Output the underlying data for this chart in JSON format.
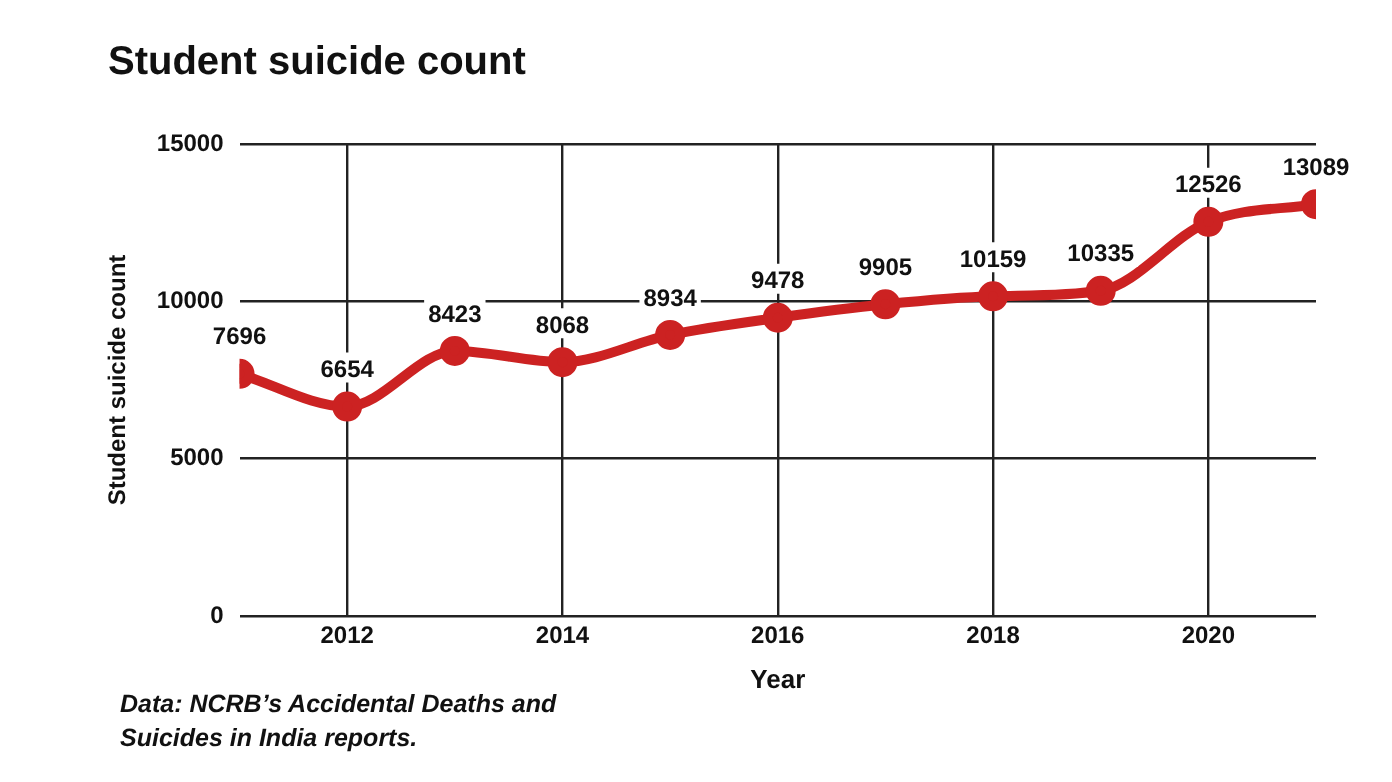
{
  "chart_data": {
    "type": "line",
    "title": "Student suicide count",
    "xlabel": "Year",
    "ylabel": "Student suicide count",
    "x": [
      2011,
      2012,
      2013,
      2014,
      2015,
      2016,
      2017,
      2018,
      2019,
      2020,
      2021
    ],
    "series": [
      {
        "color": "#cc2222",
        "values": [
          7696,
          6654,
          8423,
          8068,
          8934,
          9478,
          9905,
          10159,
          10335,
          12526,
          13089
        ]
      }
    ],
    "xlim": [
      2011,
      2021
    ],
    "xticks": [
      2012,
      2014,
      2016,
      2018,
      2020
    ],
    "ylim": [
      0,
      15000
    ],
    "yticks": [
      0,
      5000,
      10000,
      15000
    ],
    "grid": true,
    "legend": false,
    "marker": "circle",
    "line_style": "solid",
    "data_labels": true,
    "annotations": [
      "Data: NCRB’s Accidental Deaths and Suicides in India reports."
    ]
  }
}
